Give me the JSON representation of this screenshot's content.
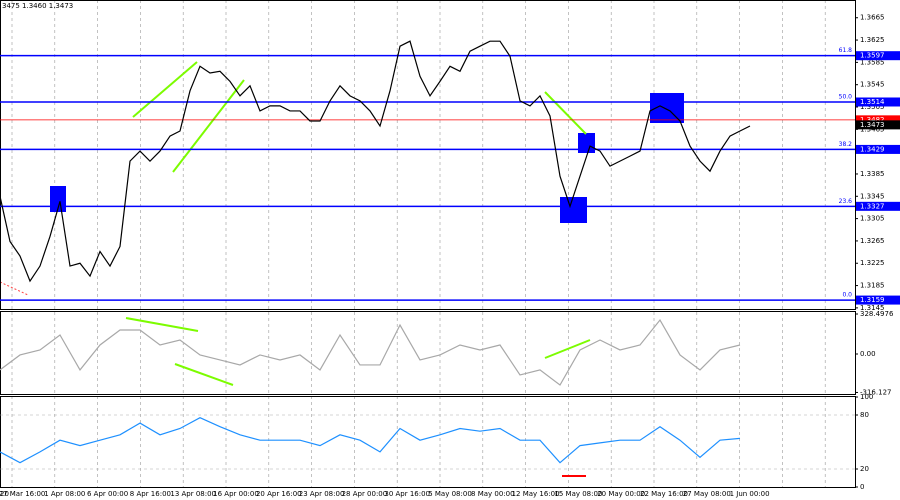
{
  "chart_data": [
    {
      "type": "line",
      "header": "3475 1.3460 1.3473",
      "series": [
        {
          "color": "#000000",
          "values": [
            1.3345,
            1.3264,
            1.3238,
            1.3193,
            1.322,
            1.3273,
            1.3336,
            1.322,
            1.3225,
            1.3202,
            1.3246,
            1.322,
            1.3255,
            1.3408,
            1.3426,
            1.3408,
            1.3426,
            1.3453,
            1.3462,
            1.3534,
            1.3578,
            1.3566,
            1.3569,
            1.3551,
            1.3525,
            1.3543,
            1.3498,
            1.3507,
            1.3507,
            1.3498,
            1.3498,
            1.348,
            1.348,
            1.3516,
            1.3543,
            1.3525,
            1.3516,
            1.3498,
            1.3471,
            1.3534,
            1.3614,
            1.3623,
            1.356,
            1.3525,
            1.3551,
            1.3578,
            1.3569,
            1.3605,
            1.3614,
            1.3623,
            1.3623,
            1.3596,
            1.3516,
            1.3507,
            1.3525,
            1.3489,
            1.3381,
            1.3327,
            1.3381,
            1.3435,
            1.3426,
            1.3399,
            1.3408,
            1.3417,
            1.3426,
            1.3498,
            1.3507,
            1.3498,
            1.348,
            1.3435,
            1.3408,
            1.339,
            1.3426,
            1.3453,
            1.3462,
            1.3471
          ]
        }
      ],
      "ylim": [
        1.3143,
        1.3695
      ],
      "yticks": [
        1.3665,
        1.3625,
        1.3585,
        1.3545,
        1.3505,
        1.3465,
        1.3385,
        1.3345,
        1.3305,
        1.3265,
        1.3225,
        1.3185,
        1.3145
      ],
      "levels": [
        {
          "label": "61.8",
          "price": 1.3597
        },
        {
          "label": "50.0",
          "price": 1.3514
        },
        {
          "label": "38.2",
          "price": 1.3429
        },
        {
          "label": "23.6",
          "price": 1.3327
        },
        {
          "label": "0.0",
          "price": 1.3159
        }
      ],
      "red_line": 1.3482,
      "last_price": 1.3473,
      "x_label_partial": "20",
      "x_labels": [
        "27 Mar 16:00",
        "1 Apr 08:00",
        "6 Apr 00:00",
        "8 Apr 16:00",
        "13 Apr 08:00",
        "16 Apr 00:00",
        "20 Apr 16:00",
        "23 Apr 08:00",
        "28 Apr 00:00",
        "30 Apr 16:00",
        "5 May 08:00",
        "8 May 00:00",
        "12 May 16:00",
        "15 May 08:00",
        "20 May 00:00",
        "22 May 16:00",
        "27 May 08:00",
        "1 Jun 00:00"
      ]
    },
    {
      "type": "line",
      "series": [
        {
          "color": "#a8a8a8",
          "values": [
            -131,
            -8,
            33,
            156,
            -131,
            74,
            197,
            197,
            74,
            115,
            -8,
            -49,
            -90,
            -8,
            -49,
            -8,
            -131,
            156,
            -90,
            -90,
            238,
            -49,
            -8,
            74,
            33,
            74,
            -172,
            -131,
            -255,
            33,
            115,
            33,
            74,
            279,
            -8,
            -131,
            33,
            74
          ]
        }
      ],
      "ylim": [
        -337,
        345
      ],
      "yticks": [
        {
          "value": 328.4976,
          "label": "328.4976"
        },
        {
          "value": 0,
          "label": "0.00"
        },
        {
          "value": -316.127,
          "label": "-316.127"
        }
      ]
    },
    {
      "type": "line",
      "series": [
        {
          "color": "#1e90ff",
          "values": [
            39,
            27,
            39,
            52,
            46,
            52,
            58,
            71,
            58,
            65,
            77,
            67,
            58,
            52,
            52,
            52,
            46,
            58,
            52,
            39,
            65,
            52,
            58,
            65,
            62,
            65,
            52,
            52,
            27,
            46,
            49,
            52,
            52,
            67,
            52,
            33,
            52,
            54
          ]
        }
      ],
      "ylim": [
        0,
        100
      ],
      "yticks": [
        100,
        80,
        20,
        0
      ],
      "dashed": [
        80,
        20
      ]
    }
  ]
}
